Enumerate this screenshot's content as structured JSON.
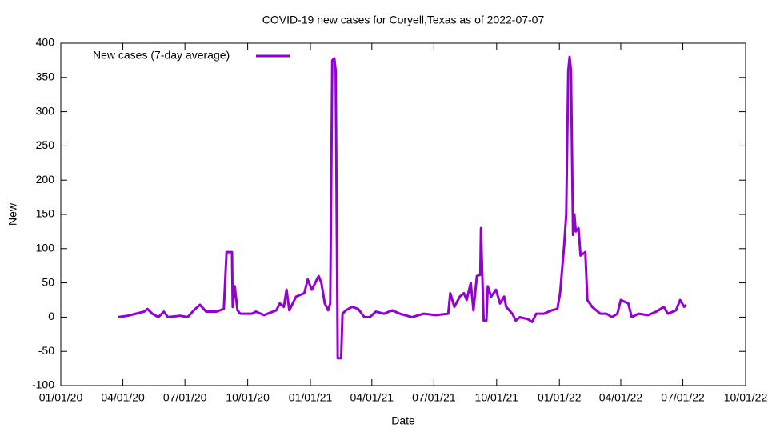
{
  "chart_data": {
    "type": "line",
    "title": "COVID-19 new cases for Coryell,Texas as of 2022-07-07",
    "x_label": "Date",
    "y_label": "New",
    "legend": "top-left",
    "x": [
      "2020-03-25",
      "2020-04-08",
      "2020-04-20",
      "2020-05-02",
      "2020-05-07",
      "2020-05-14",
      "2020-05-23",
      "2020-05-31",
      "2020-06-06",
      "2020-06-24",
      "2020-07-05",
      "2020-07-14",
      "2020-07-23",
      "2020-08-01",
      "2020-08-16",
      "2020-08-27",
      "2020-08-31",
      "2020-09-08",
      "2020-09-09",
      "2020-09-12",
      "2020-09-16",
      "2020-09-20",
      "2020-10-07",
      "2020-10-13",
      "2020-10-25",
      "2020-11-12",
      "2020-11-17",
      "2020-11-23",
      "2020-11-27",
      "2020-12-01",
      "2020-12-11",
      "2020-12-23",
      "2020-12-28",
      "2021-01-03",
      "2021-01-13",
      "2021-01-17",
      "2021-01-22",
      "2021-01-27",
      "2021-01-30",
      "2021-02-02",
      "2021-02-05",
      "2021-02-07",
      "2021-02-10",
      "2021-02-15",
      "2021-02-17",
      "2021-02-22",
      "2021-03-03",
      "2021-03-12",
      "2021-03-21",
      "2021-03-29",
      "2021-04-07",
      "2021-04-19",
      "2021-05-01",
      "2021-05-12",
      "2021-05-30",
      "2021-06-16",
      "2021-07-04",
      "2021-07-22",
      "2021-07-25",
      "2021-07-31",
      "2021-08-08",
      "2021-08-14",
      "2021-08-18",
      "2021-08-24",
      "2021-08-28",
      "2021-09-02",
      "2021-09-07",
      "2021-09-08",
      "2021-09-10",
      "2021-09-12",
      "2021-09-16",
      "2021-09-18",
      "2021-09-23",
      "2021-09-30",
      "2021-10-06",
      "2021-10-12",
      "2021-10-15",
      "2021-10-24",
      "2021-10-29",
      "2021-11-04",
      "2021-11-16",
      "2021-11-22",
      "2021-11-28",
      "2021-12-09",
      "2021-12-21",
      "2021-12-29",
      "2022-01-02",
      "2022-01-08",
      "2022-01-11",
      "2022-01-14",
      "2022-01-16",
      "2022-01-18",
      "2022-01-21",
      "2022-01-23",
      "2022-01-25",
      "2022-01-29",
      "2022-02-01",
      "2022-02-08",
      "2022-02-11",
      "2022-02-18",
      "2022-03-02",
      "2022-03-11",
      "2022-03-19",
      "2022-03-27",
      "2022-04-01",
      "2022-04-12",
      "2022-04-17",
      "2022-04-27",
      "2022-05-11",
      "2022-05-23",
      "2022-06-03",
      "2022-06-09",
      "2022-06-21",
      "2022-06-27",
      "2022-07-03",
      "2022-07-06"
    ],
    "series": [
      {
        "name": "New cases (7-day average)",
        "color": "#9400d3",
        "values": [
          0,
          2,
          5,
          8,
          12,
          5,
          0,
          8,
          0,
          2,
          0,
          10,
          18,
          8,
          8,
          12,
          95,
          95,
          15,
          45,
          10,
          5,
          5,
          8,
          3,
          10,
          20,
          15,
          40,
          10,
          30,
          35,
          55,
          40,
          60,
          50,
          20,
          10,
          20,
          375,
          378,
          360,
          -60,
          -60,
          5,
          10,
          15,
          12,
          0,
          0,
          8,
          5,
          10,
          5,
          0,
          5,
          3,
          5,
          35,
          15,
          30,
          35,
          25,
          50,
          10,
          60,
          62,
          130,
          60,
          -5,
          -5,
          45,
          30,
          40,
          20,
          30,
          15,
          5,
          -5,
          0,
          -3,
          -7,
          5,
          5,
          10,
          12,
          35,
          105,
          150,
          360,
          380,
          360,
          120,
          150,
          125,
          130,
          90,
          95,
          25,
          15,
          5,
          5,
          0,
          5,
          25,
          20,
          0,
          5,
          3,
          8,
          15,
          5,
          10,
          25,
          15,
          18
        ]
      }
    ],
    "xlim": [
      "2020-01-01",
      "2022-10-01"
    ],
    "xticks": [
      {
        "value": "2020-01-01",
        "label": "01/01/20"
      },
      {
        "value": "2020-04-01",
        "label": "04/01/20"
      },
      {
        "value": "2020-07-01",
        "label": "07/01/20"
      },
      {
        "value": "2020-10-01",
        "label": "10/01/20"
      },
      {
        "value": "2021-01-01",
        "label": "01/01/21"
      },
      {
        "value": "2021-04-01",
        "label": "04/01/21"
      },
      {
        "value": "2021-07-01",
        "label": "07/01/21"
      },
      {
        "value": "2021-10-01",
        "label": "10/01/21"
      },
      {
        "value": "2022-01-01",
        "label": "01/01/22"
      },
      {
        "value": "2022-04-01",
        "label": "04/01/22"
      },
      {
        "value": "2022-07-01",
        "label": "07/01/22"
      },
      {
        "value": "2022-10-01",
        "label": "10/01/22"
      }
    ],
    "ylim": [
      -100,
      400
    ],
    "yticks": [
      -100,
      -50,
      0,
      50,
      100,
      150,
      200,
      250,
      300,
      350,
      400
    ]
  }
}
